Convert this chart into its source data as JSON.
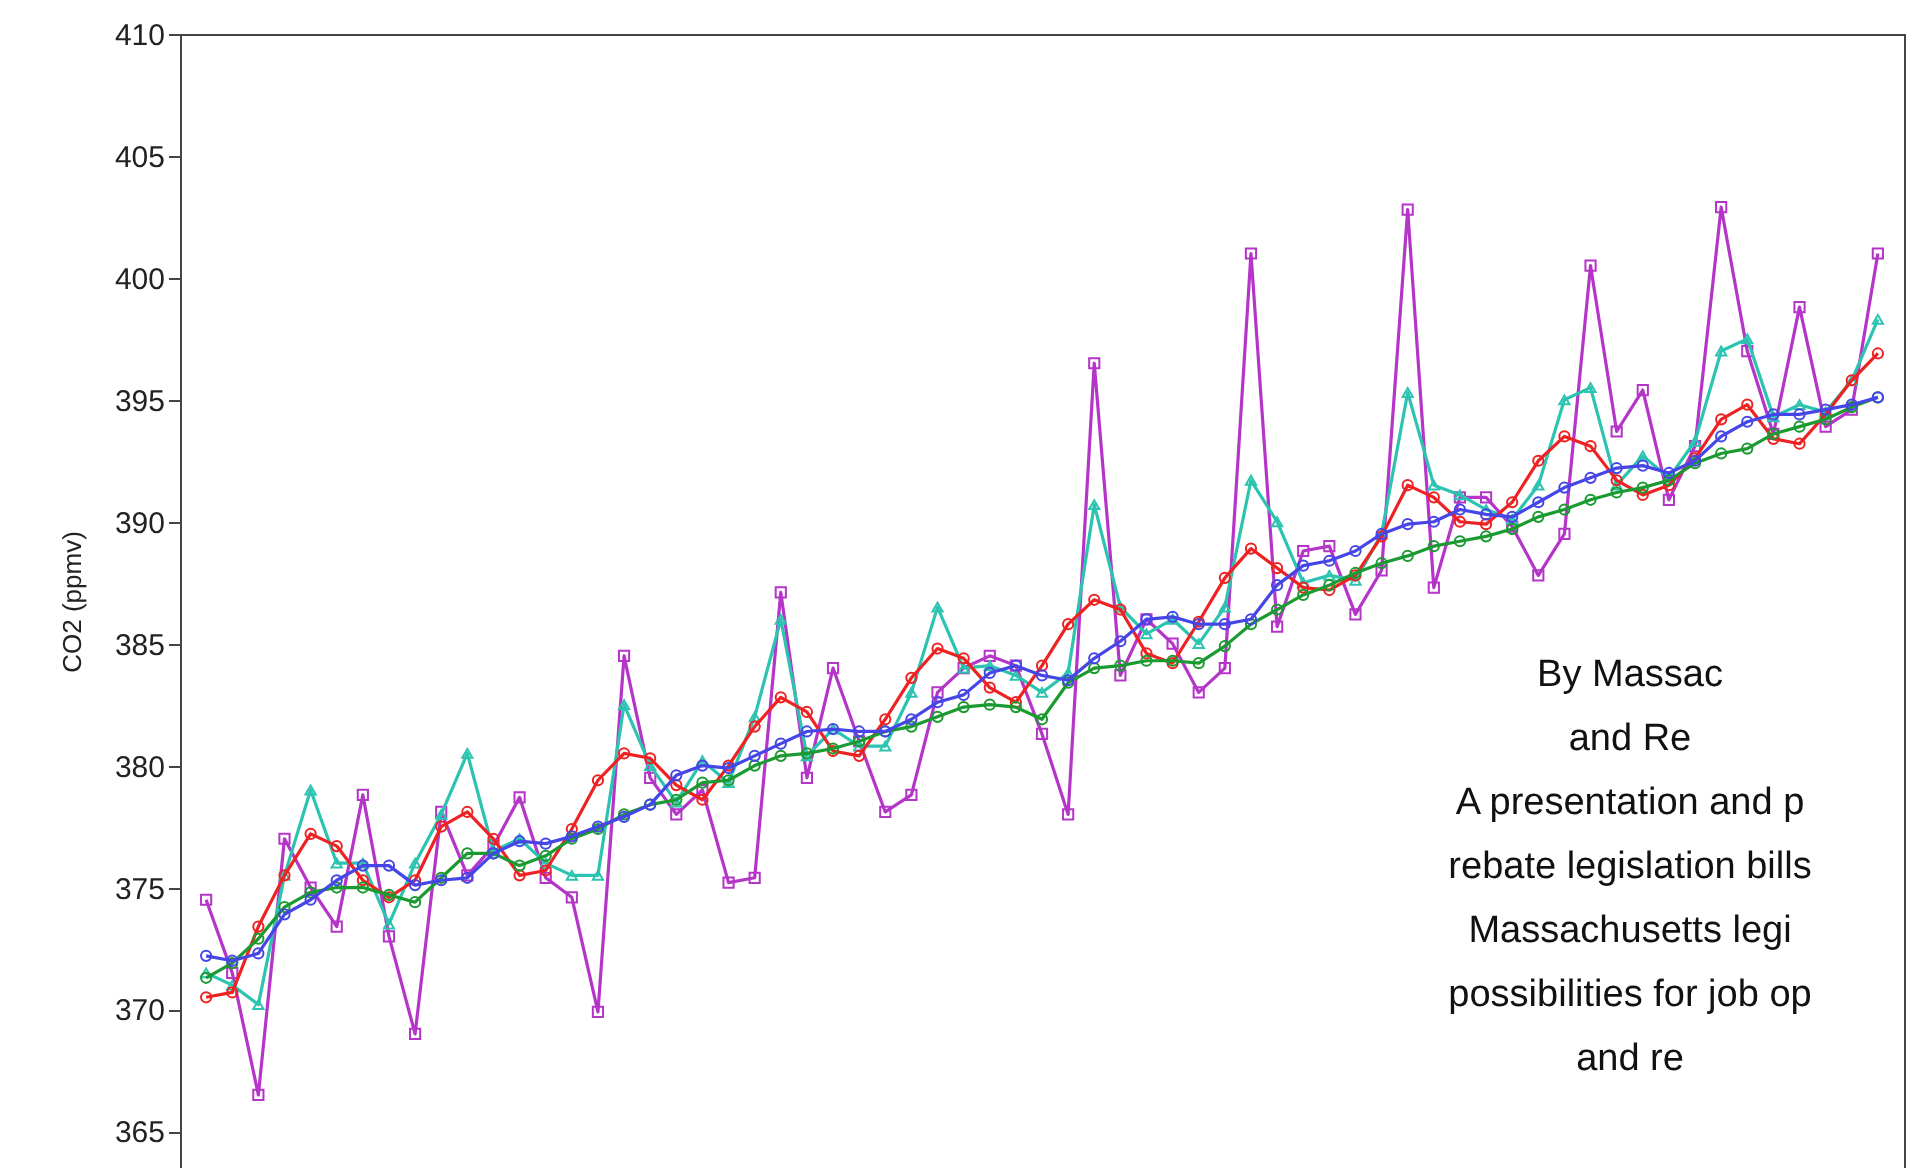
{
  "chart_data": {
    "type": "line",
    "ylabel": "CO2 (ppmv)",
    "categories": [
      null,
      null,
      null,
      null,
      null,
      null,
      null,
      null,
      null,
      null,
      null,
      null,
      null,
      null,
      null,
      null,
      null,
      null,
      null,
      null,
      null,
      null,
      null,
      null,
      null,
      null,
      null,
      null,
      null,
      null,
      null,
      null,
      null,
      null,
      null,
      null,
      null,
      null,
      null,
      null,
      null,
      null,
      null,
      null,
      null,
      null,
      null,
      null,
      null,
      null,
      null,
      null,
      null,
      null,
      null,
      null,
      null,
      null,
      null,
      null,
      null,
      null,
      null,
      null,
      null
    ],
    "ylim": [
      363.5,
      410
    ],
    "yticks": [
      365,
      370,
      375,
      380,
      385,
      390,
      395,
      400,
      405,
      410
    ],
    "tick_labels": "y",
    "grid": false,
    "line_style": "solid",
    "series": [
      {
        "color": "#b535c8",
        "marker": "square",
        "values": [
          374.5,
          371.5,
          366.5,
          377,
          375,
          373.4,
          378.8,
          373,
          369,
          378.1,
          375.5,
          376.7,
          378.7,
          375.4,
          374.6,
          369.9,
          384.5,
          379.5,
          378,
          379,
          375.2,
          375.4,
          387.1,
          379.5,
          384,
          381,
          378.1,
          378.8,
          383,
          384,
          384.5,
          384.1,
          381.3,
          378,
          396.5,
          383.7,
          386,
          385,
          383,
          384,
          401,
          385.7,
          388.8,
          389,
          386.2,
          388,
          402.8,
          387.3,
          391,
          391,
          389.8,
          387.8,
          389.5,
          400.5,
          393.7,
          395.4,
          390.9,
          393.1,
          402.9,
          397,
          393.6,
          398.8,
          393.9,
          394.6,
          401
        ]
      },
      {
        "color": "#2cc4b0",
        "marker": "triangle",
        "values": [
          371.5,
          371,
          370.2,
          375.5,
          379,
          376,
          376,
          373.5,
          376,
          378,
          380.5,
          376.5,
          377,
          376,
          375.5,
          375.5,
          382.5,
          380,
          378.5,
          380.2,
          379.3,
          382,
          386,
          380.4,
          381.5,
          380.8,
          380.8,
          383,
          386.5,
          384,
          384.1,
          383.7,
          383,
          383.8,
          390.7,
          386.5,
          385.4,
          386,
          385,
          386.5,
          391.7,
          390,
          387.5,
          387.8,
          387.6,
          389.5,
          395.3,
          391.5,
          391.1,
          390.5,
          390.1,
          391.5,
          395,
          395.5,
          391.5,
          392.7,
          391.8,
          393.3,
          397,
          397.5,
          394.3,
          394.8,
          394.5,
          395.8,
          398.3
        ]
      },
      {
        "color": "#ee2222",
        "marker": "circle",
        "values": [
          370.5,
          370.7,
          373.4,
          375.5,
          377.2,
          376.7,
          375.3,
          374.6,
          375.3,
          377.5,
          378.1,
          377,
          375.5,
          375.7,
          377.4,
          379.4,
          380.5,
          380.3,
          379.2,
          378.6,
          380,
          381.6,
          382.8,
          382.2,
          380.6,
          380.4,
          381.9,
          383.6,
          384.8,
          384.4,
          383.2,
          382.6,
          384.1,
          385.8,
          386.8,
          386.4,
          384.6,
          384.2,
          385.9,
          387.7,
          388.9,
          388.1,
          387.3,
          387.2,
          387.8,
          389.4,
          391.5,
          391,
          390,
          389.9,
          390.8,
          392.5,
          393.5,
          393.1,
          391.7,
          391.1,
          391.5,
          392.6,
          394.2,
          394.8,
          393.4,
          393.2,
          394.4,
          395.8,
          396.9
        ]
      },
      {
        "color": "#1a9a30",
        "marker": "circle",
        "values": [
          371.3,
          371.9,
          372.9,
          374.2,
          374.8,
          375,
          375,
          374.7,
          374.4,
          375.4,
          376.4,
          376.4,
          375.9,
          376.3,
          377,
          377.4,
          378,
          378.4,
          378.6,
          379.3,
          379.4,
          380,
          380.4,
          380.5,
          380.7,
          381,
          381.4,
          381.6,
          382,
          382.4,
          382.5,
          382.4,
          381.9,
          383.4,
          384,
          384.1,
          384.3,
          384.3,
          384.2,
          384.9,
          385.8,
          386.4,
          387,
          387.4,
          387.9,
          388.3,
          388.6,
          389,
          389.2,
          389.4,
          389.7,
          390.2,
          390.5,
          390.9,
          391.2,
          391.4,
          391.7,
          392.4,
          392.8,
          393,
          393.6,
          393.9,
          394.2,
          394.7,
          395.1
        ]
      },
      {
        "color": "#4646e6",
        "marker": "circle",
        "values": [
          372.2,
          372,
          372.3,
          373.9,
          374.5,
          375.3,
          375.9,
          375.9,
          375.1,
          375.3,
          375.4,
          376.4,
          376.9,
          376.8,
          377.1,
          377.5,
          377.9,
          378.4,
          379.6,
          380,
          379.9,
          380.4,
          380.9,
          381.4,
          381.5,
          381.4,
          381.4,
          381.9,
          382.6,
          382.9,
          383.8,
          384.1,
          383.7,
          383.5,
          384.4,
          385.1,
          386,
          386.1,
          385.8,
          385.8,
          386,
          387.4,
          388.2,
          388.4,
          388.8,
          389.5,
          389.9,
          390,
          390.5,
          390.3,
          390.2,
          390.8,
          391.4,
          391.8,
          392.2,
          392.3,
          392,
          392.5,
          393.5,
          394.1,
          394.4,
          394.4,
          394.6,
          394.8,
          395.1
        ]
      }
    ],
    "annotations": [
      "By Massac",
      "and Re",
      "A presentation and p",
      "rebate legislation bills",
      "Massachusetts legi",
      "possibilities for job op",
      "and re"
    ]
  }
}
